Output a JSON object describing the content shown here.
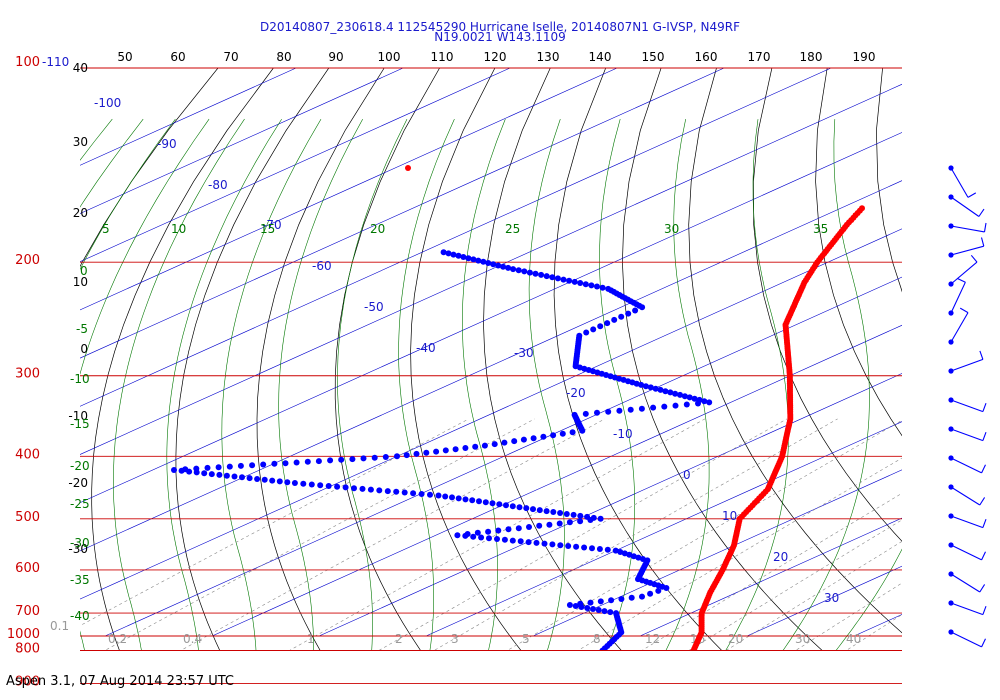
{
  "header": {
    "line1": "D20140807_230618.4 112545290 Hurricane Iselle, 20140807N1 G-IVSP, N49RF",
    "line2": "N19.0021 W143.1109"
  },
  "footer": "Aspen 3.1, 07 Aug 2014  23:57 UTC",
  "colors": {
    "isobar": "#cc0000",
    "temperature": "#ff0000",
    "dewpoint": "#0000ff",
    "isotherm": "#0000cc",
    "dry_adiabat": "#000000",
    "moist_adiabat": "#007700",
    "mixing_ratio": "#888888"
  },
  "chart_data": {
    "type": "skew-t log-p",
    "pressure_levels_hpa": [
      100,
      200,
      300,
      400,
      500,
      600,
      700,
      800,
      900,
      1000
    ],
    "pressure_labels": [
      "100",
      "200",
      "300",
      "400",
      "500",
      "600",
      "700",
      "800",
      "900",
      "1000"
    ],
    "top_scale_labels": [
      "50",
      "60",
      "70",
      "80",
      "90",
      "100",
      "110",
      "120",
      "130",
      "140",
      "150",
      "160",
      "170",
      "180",
      "190"
    ],
    "top_left_label": "-110",
    "left_scale_labels": [
      "40",
      "30",
      "20",
      "10",
      "0",
      "-10",
      "-20",
      "-30"
    ],
    "isotherm_labels": [
      "-100",
      "-90",
      "-80",
      "-70",
      "-60",
      "-50",
      "-40",
      "-30",
      "-20",
      "-10",
      "0",
      "10",
      "20",
      "30"
    ],
    "moist_adiabat_labels_left": [
      "0",
      "-5",
      "-10",
      "-15",
      "-20",
      "-25",
      "-30",
      "-35",
      "-40"
    ],
    "moist_adiabat_labels_top": [
      "5",
      "10",
      "15",
      "20",
      "25",
      "30",
      "35"
    ],
    "mixing_ratio_labels": [
      "0.1",
      "0.2",
      "0.4",
      "1",
      "2",
      "3",
      "5",
      "8",
      "12",
      "16",
      "20",
      "30",
      "40"
    ],
    "temperature_profile": [
      {
        "p": 1000,
        "t": 27.0
      },
      {
        "p": 975,
        "t": 25.0
      },
      {
        "p": 950,
        "t": 23.2
      },
      {
        "p": 925,
        "t": 22.0
      },
      {
        "p": 900,
        "t": 23.0
      },
      {
        "p": 875,
        "t": 22.6
      },
      {
        "p": 850,
        "t": 21.0
      },
      {
        "p": 800,
        "t": 18.0
      },
      {
        "p": 750,
        "t": 15.0
      },
      {
        "p": 700,
        "t": 11.0
      },
      {
        "p": 650,
        "t": 7.5
      },
      {
        "p": 600,
        "t": 4.0
      },
      {
        "p": 550,
        "t": 0.0
      },
      {
        "p": 500,
        "t": -5.0
      },
      {
        "p": 450,
        "t": -8.5
      },
      {
        "p": 400,
        "t": -14.0
      },
      {
        "p": 350,
        "t": -21.0
      },
      {
        "p": 300,
        "t": -30.0
      },
      {
        "p": 250,
        "t": -41.0
      },
      {
        "p": 215,
        "t": -48.0
      },
      {
        "p": 200,
        "t": -51.0
      },
      {
        "p": 175,
        "t": -56.0
      },
      {
        "p": 165,
        "t": -58.0
      }
    ],
    "dewpoint_profile": [
      {
        "p": 1000,
        "td": 20.5
      },
      {
        "p": 975,
        "td": 19.0
      },
      {
        "p": 950,
        "td": 18.5
      },
      {
        "p": 925,
        "td": 18.0
      },
      {
        "p": 900,
        "td": 17.5
      },
      {
        "p": 880,
        "td": 12.0
      },
      {
        "p": 850,
        "td": 11.0
      },
      {
        "p": 800,
        "td": 9.5
      },
      {
        "p": 750,
        "td": 7.5
      },
      {
        "p": 700,
        "td": 3.0
      },
      {
        "p": 680,
        "td": -3.0
      },
      {
        "p": 660,
        "td": 2.0
      },
      {
        "p": 640,
        "td": 2.5
      },
      {
        "p": 620,
        "td": -2.0
      },
      {
        "p": 580,
        "td": -5.0
      },
      {
        "p": 560,
        "td": -10.0
      },
      {
        "p": 530,
        "td": -28.0
      },
      {
        "p": 500,
        "td": -18.0
      },
      {
        "p": 460,
        "td": -38.0
      },
      {
        "p": 440,
        "td": -54.0
      },
      {
        "p": 420,
        "td": -68.0
      },
      {
        "p": 400,
        "td": -50.0
      },
      {
        "p": 385,
        "td": -44.0
      },
      {
        "p": 365,
        "td": -38.0
      },
      {
        "p": 345,
        "td": -42.0
      },
      {
        "p": 330,
        "td": -32.0
      },
      {
        "p": 310,
        "td": -42.0
      },
      {
        "p": 290,
        "td": -52.0
      },
      {
        "p": 260,
        "td": -58.0
      },
      {
        "p": 235,
        "td": -58.0
      },
      {
        "p": 220,
        "td": -65.0
      },
      {
        "p": 205,
        "td": -78.0
      },
      {
        "p": 193,
        "td": -88.0
      }
    ],
    "wind_barb_count": 17,
    "axes": {
      "p_top": 100,
      "p_bottom": 1000,
      "skew": true,
      "log_pressure": true
    }
  }
}
